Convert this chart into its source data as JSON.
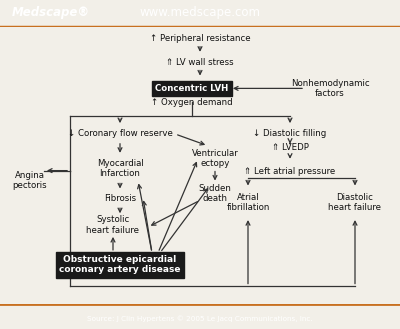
{
  "fig_width": 4.0,
  "fig_height": 3.29,
  "dpi": 100,
  "bg_color": "#f2efe8",
  "header_color": "#1e3f6e",
  "header_text_color": "#ffffff",
  "header_label_left": "Medscape®",
  "header_label_center": "www.medscape.com",
  "footer_text": "Source: J Clin Hypertens © 2005 Le Jacq Communications, Inc.",
  "footer_bg": "#1e3f6e",
  "footer_text_color": "#ffffff",
  "orange_line": "#c87020",
  "black_box_bg": "#1a1a1a",
  "black_box_text_color": "#ffffff",
  "arrow_color": "#333333",
  "text_color": "#111111"
}
